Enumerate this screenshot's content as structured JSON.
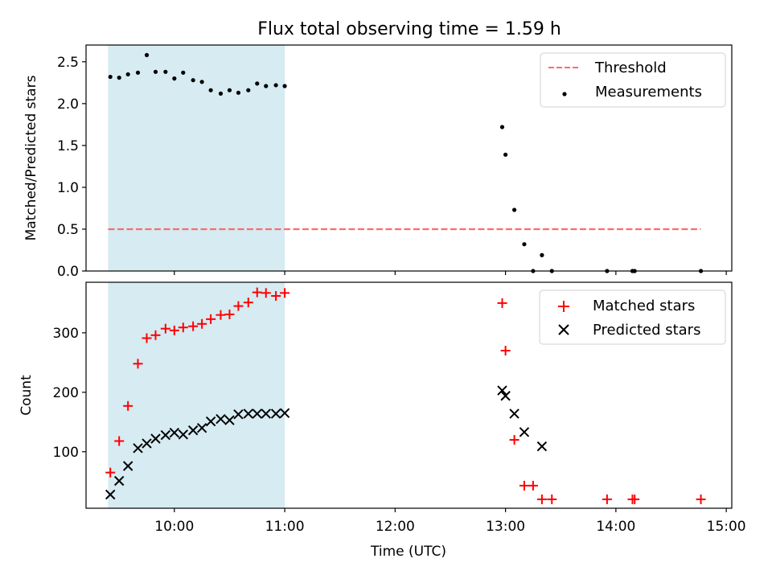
{
  "figure": {
    "title": "Flux total observing time = 1.59 h",
    "shaded_span": {
      "start_h": 9.4,
      "end_h": 11.0,
      "color": "#add8e6"
    },
    "colors": {
      "threshold": "#ff6b6b",
      "matched": "#ff0000",
      "predicted": "#000000",
      "measurements": "#000000"
    }
  },
  "chart_data": [
    {
      "type": "scatter",
      "panel": "top",
      "ylabel": "Matched/Predicted stars",
      "ylim": [
        0,
        2.7
      ],
      "xlim": [
        9.2,
        15.05
      ],
      "yticks": [
        0.0,
        0.5,
        1.0,
        1.5,
        2.0,
        2.5
      ],
      "ytick_labels": [
        "0.0",
        "0.5",
        "1.0",
        "1.5",
        "2.0",
        "2.5"
      ],
      "legend": [
        "Threshold",
        "Measurements"
      ],
      "legend_position": "top-right",
      "threshold": {
        "label": "Threshold",
        "value": 0.5,
        "x_range": [
          9.4,
          14.77
        ]
      },
      "series": [
        {
          "name": "Measurements",
          "x": [
            9.42,
            9.5,
            9.58,
            9.67,
            9.75,
            9.83,
            9.92,
            10.0,
            10.08,
            10.17,
            10.25,
            10.33,
            10.42,
            10.5,
            10.58,
            10.67,
            10.75,
            10.83,
            10.92,
            11.0,
            12.97,
            13.0,
            13.08,
            13.17,
            13.33,
            13.25,
            13.42,
            13.92,
            14.15,
            14.17,
            14.77
          ],
          "y": [
            2.32,
            2.31,
            2.35,
            2.37,
            2.58,
            2.38,
            2.38,
            2.3,
            2.37,
            2.28,
            2.26,
            2.16,
            2.12,
            2.16,
            2.13,
            2.16,
            2.24,
            2.21,
            2.22,
            2.21,
            1.72,
            1.39,
            0.73,
            0.32,
            0.19,
            0.0,
            0.0,
            0.0,
            0.0,
            0.0,
            0.0
          ]
        }
      ]
    },
    {
      "type": "scatter",
      "panel": "bottom",
      "xlabel": "Time (UTC)",
      "ylabel": "Count",
      "ylim": [
        5,
        385
      ],
      "xlim": [
        9.2,
        15.05
      ],
      "yticks": [
        100,
        200,
        300
      ],
      "ytick_labels": [
        "100",
        "200",
        "300"
      ],
      "xticks": [
        10,
        11,
        12,
        13,
        14,
        15
      ],
      "xtick_labels": [
        "10:00",
        "11:00",
        "12:00",
        "13:00",
        "14:00",
        "15:00"
      ],
      "legend": [
        "Matched stars",
        "Predicted stars"
      ],
      "legend_position": "top-right",
      "series": [
        {
          "name": "Matched stars",
          "marker": "+",
          "x": [
            9.42,
            9.5,
            9.58,
            9.67,
            9.75,
            9.83,
            9.92,
            10.0,
            10.08,
            10.17,
            10.25,
            10.33,
            10.42,
            10.5,
            10.58,
            10.67,
            10.75,
            10.83,
            10.92,
            11.0,
            12.97,
            13.0,
            13.08,
            13.17,
            13.25,
            13.33,
            13.42,
            13.92,
            14.15,
            14.17,
            14.77
          ],
          "y": [
            65,
            118,
            177,
            248,
            291,
            296,
            307,
            304,
            309,
            311,
            315,
            323,
            330,
            331,
            345,
            351,
            368,
            367,
            362,
            367,
            350,
            270,
            120,
            43,
            43,
            20,
            20,
            20,
            20,
            20,
            20
          ]
        },
        {
          "name": "Predicted stars",
          "marker": "x",
          "x": [
            9.42,
            9.5,
            9.58,
            9.67,
            9.75,
            9.83,
            9.92,
            10.0,
            10.08,
            10.17,
            10.25,
            10.33,
            10.42,
            10.5,
            10.58,
            10.67,
            10.75,
            10.83,
            10.92,
            11.0,
            12.97,
            13.0,
            13.08,
            13.17,
            13.33
          ],
          "y": [
            28,
            51,
            76,
            106,
            114,
            122,
            128,
            132,
            129,
            136,
            140,
            151,
            155,
            153,
            163,
            164,
            164,
            164,
            164,
            165,
            203,
            194,
            164,
            133,
            109
          ]
        }
      ]
    }
  ]
}
